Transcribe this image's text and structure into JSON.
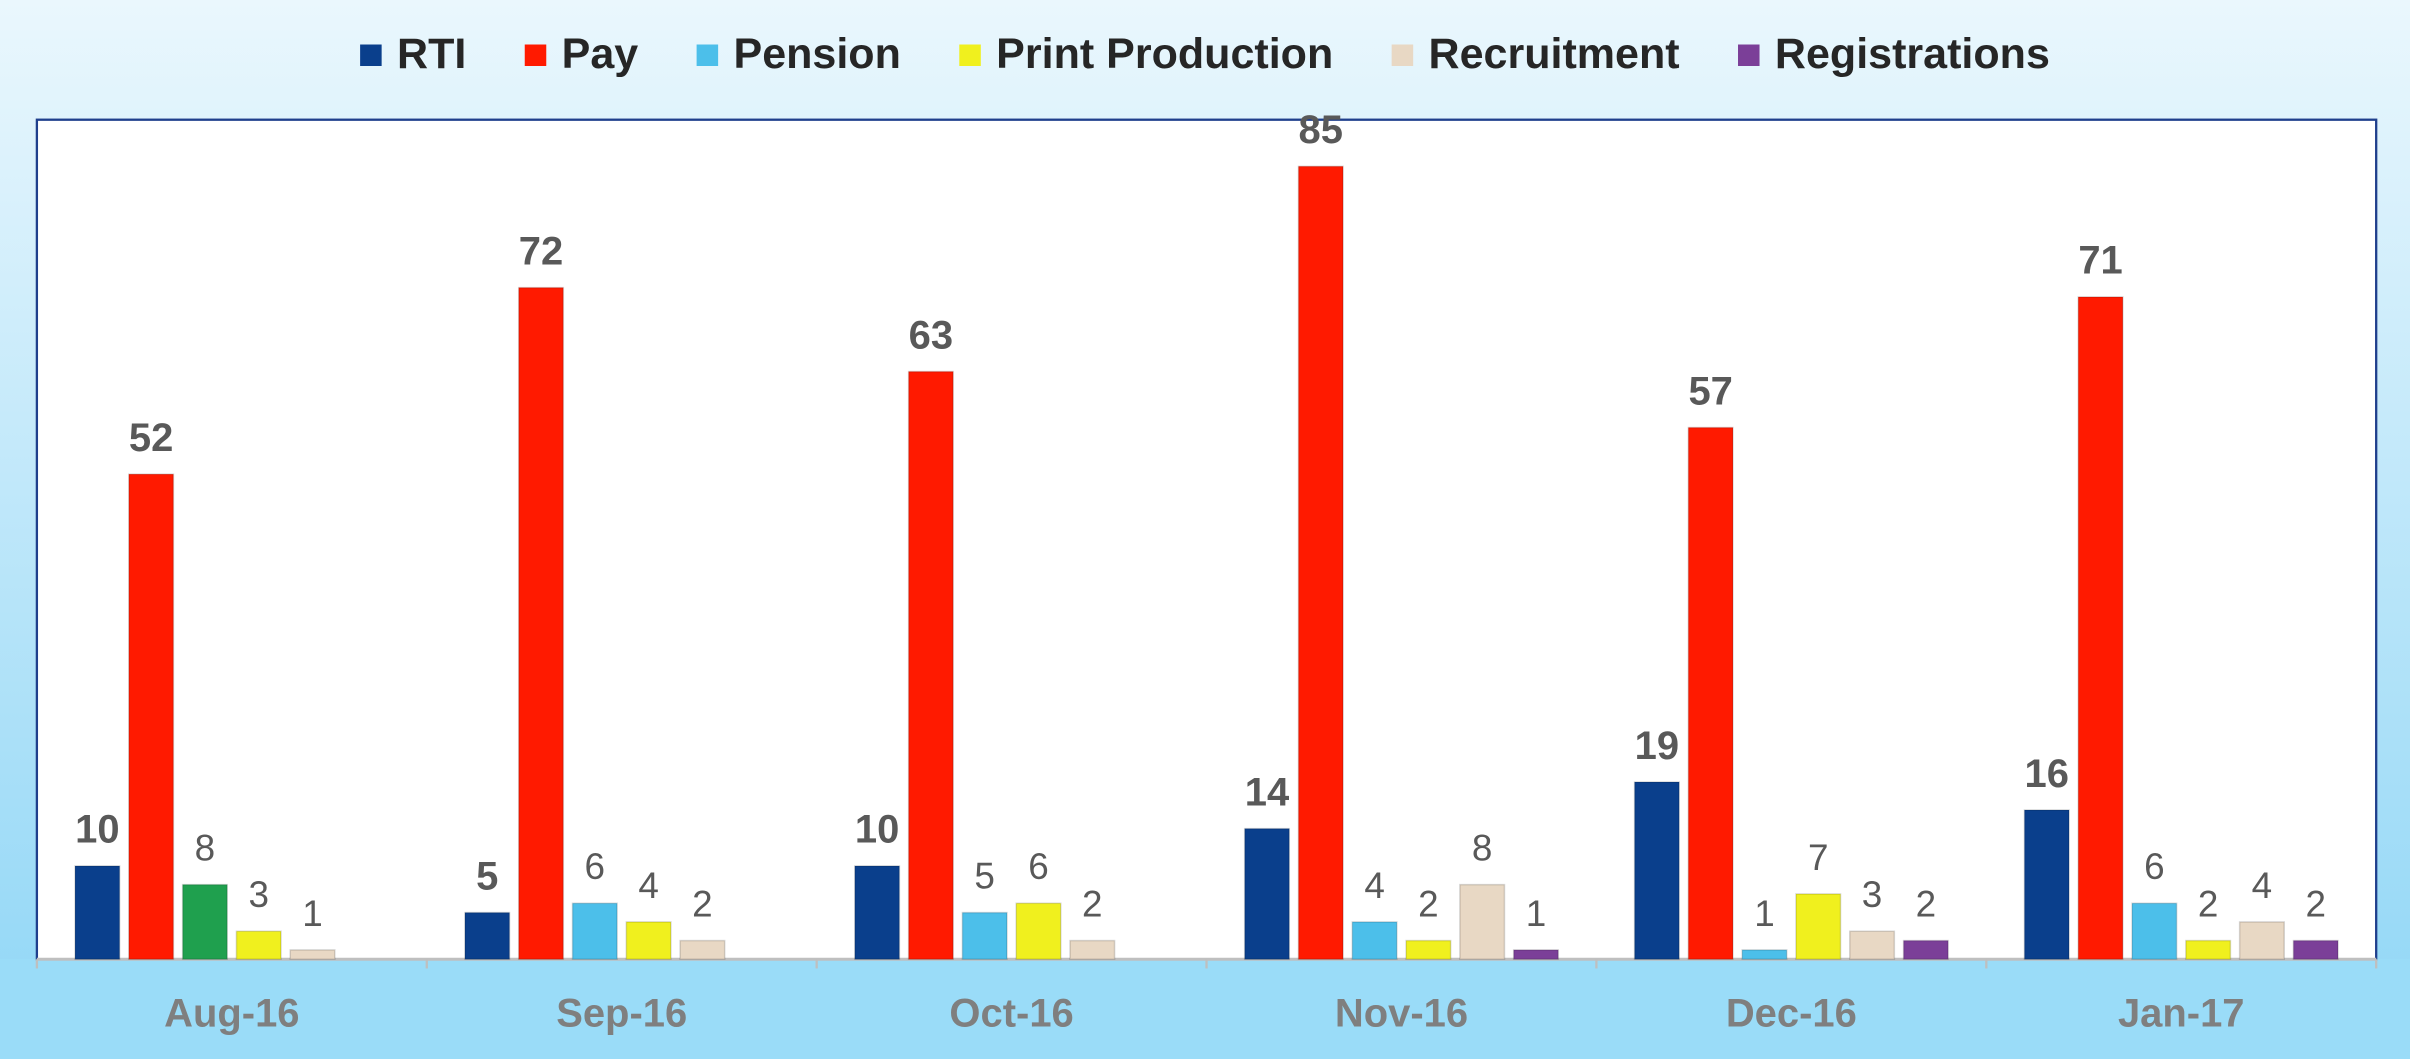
{
  "chart_data": {
    "type": "bar",
    "categories": [
      "Aug-16",
      "Sep-16",
      "Oct-16",
      "Nov-16",
      "Dec-16",
      "Jan-17"
    ],
    "series": [
      {
        "name": "RTI",
        "color": "#0a3f8c",
        "label_bold": true,
        "values": [
          10,
          5,
          10,
          14,
          19,
          16
        ]
      },
      {
        "name": "Pay",
        "color": "#ff1a00",
        "label_bold": true,
        "values": [
          52,
          72,
          63,
          85,
          57,
          71
        ]
      },
      {
        "name": "Pension",
        "color": "#4cbfea",
        "colors": [
          "#1fa04e",
          "#4cbfea",
          "#4cbfea",
          "#4cbfea",
          "#4cbfea",
          "#4cbfea"
        ],
        "label_bold": false,
        "values": [
          8,
          6,
          5,
          4,
          1,
          6
        ]
      },
      {
        "name": "Print Production",
        "color": "#f0f01e",
        "label_bold": false,
        "values": [
          3,
          4,
          6,
          2,
          7,
          2
        ]
      },
      {
        "name": "Recruitment",
        "color": "#e8d8c4",
        "label_bold": false,
        "values": [
          1,
          2,
          2,
          8,
          3,
          4
        ]
      },
      {
        "name": "Registrations",
        "color": "#7b3f98",
        "label_bold": false,
        "values": [
          null,
          null,
          null,
          1,
          2,
          2
        ]
      }
    ],
    "ylim": [
      0,
      90
    ],
    "legend": "top"
  }
}
